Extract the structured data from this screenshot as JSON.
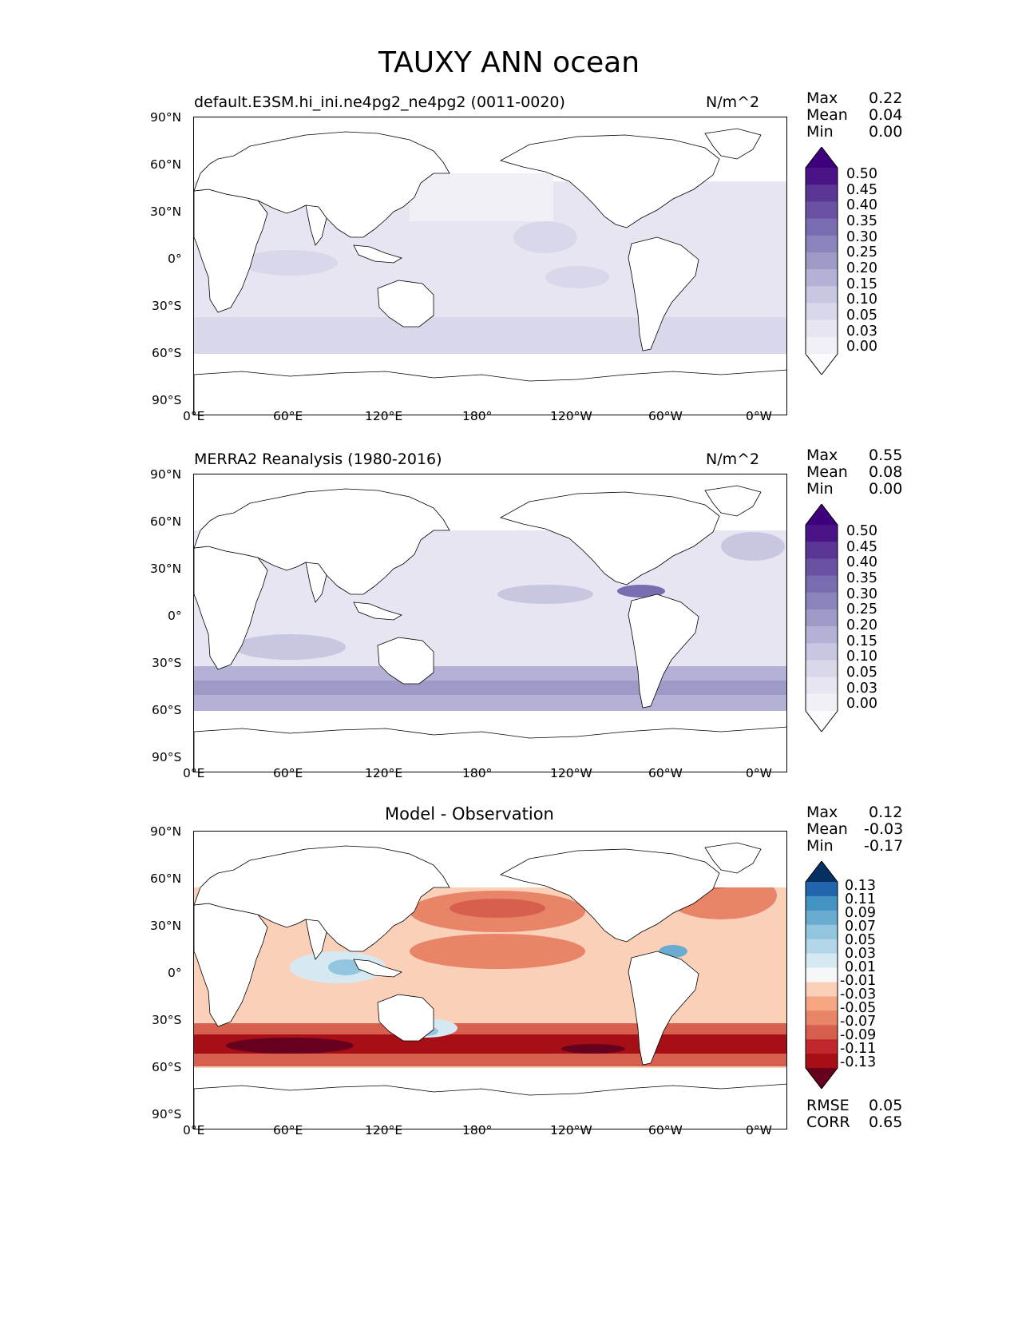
{
  "figure": {
    "title": "TAUXY ANN ocean"
  },
  "panels": [
    {
      "id": "model",
      "title": "default.E3SM.hi_ini.ne4pg2_ne4pg2 (0011-0020)",
      "units": "N/m^2",
      "stats": {
        "max_label": "Max",
        "max": "0.22",
        "mean_label": "Mean",
        "mean": "0.04",
        "min_label": "Min",
        "min": "0.00"
      },
      "colorbar": {
        "colormap": "Purples",
        "levels": [
          "0.50",
          "0.45",
          "0.40",
          "0.35",
          "0.30",
          "0.25",
          "0.20",
          "0.15",
          "0.10",
          "0.05",
          "0.03",
          "0.00"
        ]
      }
    },
    {
      "id": "obs",
      "title": "MERRA2 Reanalysis (1980-2016)",
      "units": "N/m^2",
      "stats": {
        "max_label": "Max",
        "max": "0.55",
        "mean_label": "Mean",
        "mean": "0.08",
        "min_label": "Min",
        "min": "0.00"
      },
      "colorbar": {
        "colormap": "Purples",
        "levels": [
          "0.50",
          "0.45",
          "0.40",
          "0.35",
          "0.30",
          "0.25",
          "0.20",
          "0.15",
          "0.10",
          "0.05",
          "0.03",
          "0.00"
        ]
      }
    },
    {
      "id": "diff",
      "title": "Model - Observation",
      "units": "",
      "stats": {
        "max_label": "Max",
        "max": "0.12",
        "mean_label": "Mean",
        "mean": "-0.03",
        "min_label": "Min",
        "min": "-0.17"
      },
      "metrics": {
        "rmse_label": "RMSE",
        "rmse": "0.05",
        "corr_label": "CORR",
        "corr": "0.65"
      },
      "colorbar": {
        "colormap": "RdBu",
        "levels": [
          "0.13",
          "0.11",
          "0.09",
          "0.07",
          "0.05",
          "0.03",
          "0.01",
          "-0.01",
          "-0.03",
          "-0.05",
          "-0.07",
          "-0.09",
          "-0.11",
          "-0.13"
        ]
      }
    }
  ],
  "axes": {
    "lat_ticks": [
      "90°N",
      "60°N",
      "30°N",
      "0°",
      "30°S",
      "60°S",
      "90°S"
    ],
    "lon_ticks": [
      "0°E",
      "60°E",
      "120°E",
      "180°",
      "120°W",
      "60°W",
      "0°W"
    ]
  },
  "colors": {
    "purples": [
      "#fcfbfd",
      "#f2f0f7",
      "#e6e5f1",
      "#d9d8ea",
      "#c7c7e2",
      "#b3b2d6",
      "#9e9ac8",
      "#8a84bd",
      "#7a6cb1",
      "#6a51a3",
      "#5b3594",
      "#4a1486",
      "#3f007d"
    ],
    "rdbu": [
      "#67001f",
      "#a50f15",
      "#c0282d",
      "#d6604d",
      "#e88468",
      "#f4a582",
      "#fbd0b9",
      "#f7f7f7",
      "#d6e9f2",
      "#b3d5e8",
      "#92c5de",
      "#6aacd0",
      "#4393c3",
      "#2166ac",
      "#053061"
    ]
  }
}
